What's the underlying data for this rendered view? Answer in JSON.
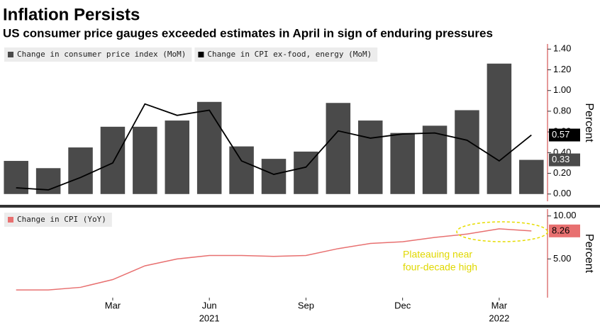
{
  "header": {
    "title": "Inflation Persists",
    "subtitle": "US consumer price gauges exceeded estimates in April in sign of enduring pressures"
  },
  "chart_data": [
    {
      "type": "combo",
      "y_label": "Percent",
      "series": [
        {
          "name": "Change in consumer price index (MoM)",
          "type": "bar",
          "color": "#4a4a4a",
          "values": [
            0.32,
            0.25,
            0.45,
            0.65,
            0.65,
            0.71,
            0.89,
            0.46,
            0.34,
            0.41,
            0.88,
            0.71,
            0.59,
            0.66,
            0.81,
            1.26,
            0.33
          ]
        },
        {
          "name": "Change in CPI ex-food, energy (MoM)",
          "type": "line",
          "color": "#000000",
          "values": [
            0.06,
            0.04,
            0.16,
            0.3,
            0.87,
            0.76,
            0.81,
            0.32,
            0.19,
            0.26,
            0.61,
            0.54,
            0.58,
            0.59,
            0.52,
            0.32,
            0.57
          ]
        }
      ],
      "ylim": [
        -0.07,
        1.45
      ],
      "yticks": [
        {
          "value": 0,
          "label": "0.00"
        },
        {
          "value": 0.2,
          "label": "0.20"
        },
        {
          "value": 0.4,
          "label": "0.40"
        },
        {
          "value": 0.6,
          "label": "0.60"
        },
        {
          "value": 0.8,
          "label": "0.80"
        },
        {
          "value": 1,
          "label": "1.00"
        },
        {
          "value": 1.2,
          "label": "1.20"
        },
        {
          "value": 1.4,
          "label": "1.40"
        }
      ]
    },
    {
      "type": "line",
      "y_label": "Percent",
      "categories": [
        null,
        null,
        null,
        "Mar",
        null,
        null,
        "Jun",
        null,
        null,
        "Sep",
        null,
        null,
        "Dec",
        null,
        null,
        "Mar",
        null
      ],
      "category_years": [
        null,
        null,
        null,
        null,
        null,
        null,
        "2021",
        null,
        null,
        null,
        null,
        null,
        null,
        null,
        null,
        "2022",
        null
      ],
      "series": [
        {
          "name": "Change in CPI (YoY)",
          "color": "#e87070",
          "values": [
            1.4,
            1.4,
            1.7,
            2.6,
            4.2,
            5.0,
            5.4,
            5.4,
            5.3,
            5.4,
            6.2,
            6.8,
            7.0,
            7.5,
            7.9,
            8.5,
            8.26
          ]
        }
      ],
      "ylim": [
        0.5,
        10.8
      ],
      "yticks": [
        {
          "value": 5,
          "label": "5.00"
        },
        {
          "value": 10,
          "label": "10.00"
        }
      ],
      "annotation": [
        "Plateauing near",
        "four-decade high"
      ]
    }
  ]
}
